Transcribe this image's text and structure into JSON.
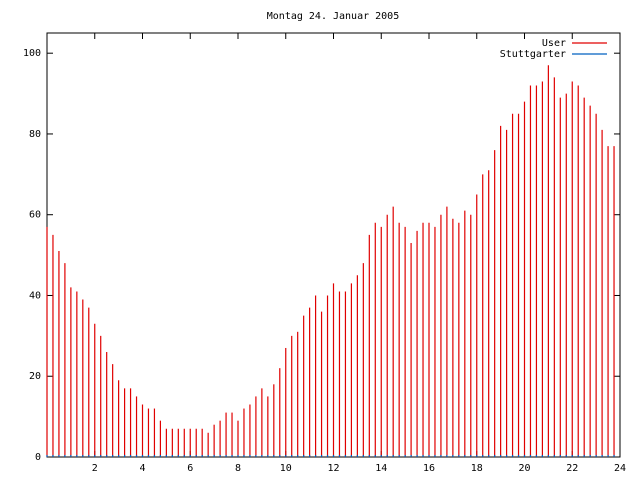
{
  "chart_data": {
    "type": "impulses",
    "title": "Montag 24. Januar 2005",
    "x": [
      0,
      0.25,
      0.5,
      0.75,
      1,
      1.25,
      1.5,
      1.75,
      2,
      2.25,
      2.5,
      2.75,
      3,
      3.25,
      3.5,
      3.75,
      4,
      4.25,
      4.5,
      4.75,
      5,
      5.25,
      5.5,
      5.75,
      6,
      6.25,
      6.5,
      6.75,
      7,
      7.25,
      7.5,
      7.75,
      8,
      8.25,
      8.5,
      8.75,
      9,
      9.25,
      9.5,
      9.75,
      10,
      10.25,
      10.5,
      10.75,
      11,
      11.25,
      11.5,
      11.75,
      12,
      12.25,
      12.5,
      12.75,
      13,
      13.25,
      13.5,
      13.75,
      14,
      14.25,
      14.5,
      14.75,
      15,
      15.25,
      15.5,
      15.75,
      16,
      16.25,
      16.5,
      16.75,
      17,
      17.25,
      17.5,
      17.75,
      18,
      18.25,
      18.5,
      18.75,
      19,
      19.25,
      19.5,
      19.75,
      20,
      20.25,
      20.5,
      20.75,
      21,
      21.25,
      21.5,
      21.75,
      22,
      22.25,
      22.5,
      22.75,
      23,
      23.25,
      23.5,
      23.75
    ],
    "series": [
      {
        "name": "User",
        "color": "#e00000",
        "values": [
          57,
          55,
          51,
          48,
          42,
          41,
          39,
          37,
          33,
          30,
          26,
          23,
          19,
          17,
          17,
          15,
          13,
          12,
          12,
          9,
          7,
          7,
          7,
          7,
          7,
          7,
          7,
          6,
          8,
          9,
          11,
          11,
          9,
          12,
          13,
          15,
          17,
          15,
          18,
          22,
          27,
          30,
          31,
          35,
          37,
          40,
          36,
          40,
          43,
          41,
          41,
          43,
          45,
          48,
          55,
          58,
          57,
          60,
          62,
          58,
          57,
          53,
          56,
          58,
          58,
          57,
          60,
          62,
          59,
          58,
          61,
          60,
          65,
          70,
          71,
          76,
          82,
          81,
          85,
          85,
          88,
          92,
          92,
          93,
          97,
          94,
          89,
          90,
          93,
          92,
          89,
          87,
          85,
          81,
          77,
          77
        ]
      },
      {
        "name": "Stuttgarter",
        "color": "#0060c0",
        "values": [
          0.5,
          0.5,
          0.5,
          0.5,
          0.5,
          0.5,
          0.5,
          0.5,
          0.5,
          0.5,
          0.5,
          0.5,
          0.5,
          0.5,
          0.5,
          0.5,
          0.5,
          0.5,
          0.5,
          0.5,
          0.5,
          0.5,
          0.5,
          0.5,
          0.5,
          0.5,
          0.5,
          0.5,
          0.5,
          0.5,
          0.5,
          0.5,
          0.5,
          0.5,
          0.5,
          0.5,
          0.5,
          0.5,
          0.5,
          0.5,
          0.5,
          0.5,
          0.5,
          0.5,
          0.5,
          0.5,
          0.5,
          0.5,
          0.5,
          0.5,
          0.5,
          0.5,
          0.5,
          0.5,
          0.5,
          0.5,
          0.5,
          0.5,
          0.5,
          0.5,
          0.5,
          0.5,
          0.5,
          0.5,
          0.5,
          0.5,
          0.5,
          0.5,
          0.5,
          0.5,
          0.5,
          0.5,
          0.5,
          0.5,
          0.5,
          0.5,
          0.5,
          0.5,
          0.5,
          0.5,
          0.5,
          0.5,
          0.5,
          0.5,
          0.5,
          0.5,
          0.5,
          0.5,
          0.5,
          0.5,
          0.5,
          0.5,
          0.5,
          0.5,
          0.5,
          0.5
        ]
      }
    ],
    "xlim": [
      0,
      24
    ],
    "xticks": [
      2,
      4,
      6,
      8,
      10,
      12,
      14,
      16,
      18,
      20,
      22,
      24
    ],
    "ylim": [
      0,
      105
    ],
    "yticks": [
      0,
      20,
      40,
      60,
      80,
      100
    ],
    "legend": "top-right"
  }
}
